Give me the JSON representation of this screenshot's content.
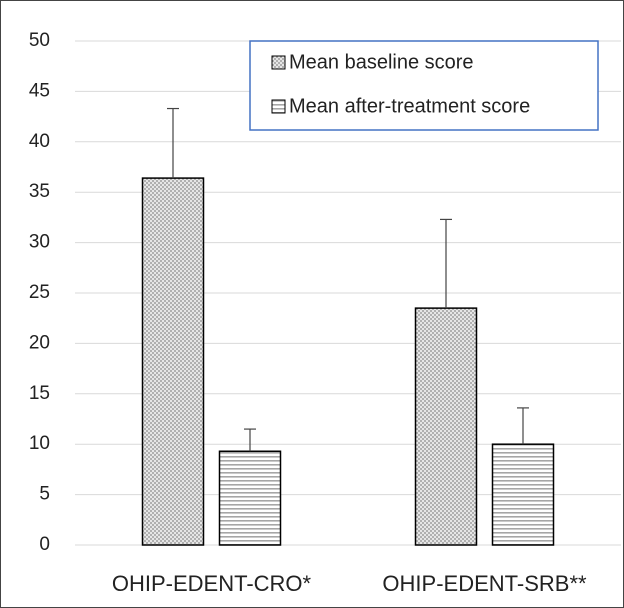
{
  "chart_data": {
    "type": "bar",
    "categories": [
      "OHIP-EDENT-CRO*",
      "OHIP-EDENT-SRB**"
    ],
    "series": [
      {
        "name": "Mean baseline score",
        "color": "#a6a6a6",
        "pattern": "dots",
        "values": [
          36.4,
          23.5
        ],
        "errors": [
          6.9,
          8.8
        ]
      },
      {
        "name": "Mean after-treatment score",
        "color": "#a6a6a6",
        "pattern": "hlines",
        "values": [
          9.3,
          10.0
        ],
        "errors": [
          2.2,
          3.6
        ]
      }
    ],
    "ylim": [
      0,
      50
    ],
    "yticks": [
      0,
      5,
      10,
      15,
      20,
      25,
      30,
      35,
      40,
      45,
      50
    ],
    "grid": true,
    "legend": "top-right"
  }
}
